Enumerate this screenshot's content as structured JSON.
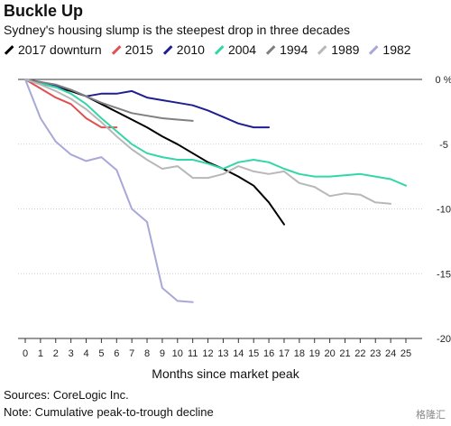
{
  "header": {
    "title": "Buckle Up",
    "subtitle": "Sydney's housing slump is the steepest drop in three decades"
  },
  "footer": {
    "source": "Sources: CoreLogic Inc.",
    "note": "Note: Cumulative peak-to-trough decline",
    "watermark": "格隆汇"
  },
  "chart_data": {
    "type": "line",
    "xlabel": "Months since market peak",
    "ylabel": "",
    "xlim": [
      0,
      25
    ],
    "ylim": [
      -20,
      0
    ],
    "x_ticks": [
      0,
      1,
      2,
      3,
      4,
      5,
      6,
      7,
      8,
      9,
      10,
      11,
      12,
      13,
      14,
      15,
      16,
      17,
      18,
      19,
      20,
      21,
      22,
      23,
      24,
      25
    ],
    "y_ticks": [
      0,
      -5,
      -10,
      -15,
      -20
    ],
    "y_tick_labels": [
      "0 %",
      "-5",
      "-10",
      "-15",
      "-20"
    ],
    "legend_position": "top",
    "grid": "horizontal",
    "series": [
      {
        "name": "2017 downturn",
        "color": "#000000",
        "x": [
          0,
          1,
          2,
          3,
          4,
          5,
          6,
          7,
          8,
          9,
          10,
          11,
          12,
          13,
          14,
          15,
          16,
          17
        ],
        "y": [
          0,
          -0.3,
          -0.6,
          -0.9,
          -1.3,
          -1.9,
          -2.5,
          -3.1,
          -3.7,
          -4.4,
          -5.0,
          -5.7,
          -6.4,
          -6.9,
          -7.5,
          -8.2,
          -9.5,
          -11.2
        ]
      },
      {
        "name": "2015",
        "color": "#e05050",
        "x": [
          0,
          1,
          2,
          3,
          4,
          5,
          6
        ],
        "y": [
          0,
          -0.7,
          -1.4,
          -1.9,
          -3.0,
          -3.7,
          -3.7
        ]
      },
      {
        "name": "2010",
        "color": "#1f1f8f",
        "x": [
          0,
          1,
          2,
          3,
          4,
          5,
          6,
          7,
          8,
          9,
          10,
          11,
          12,
          13,
          14,
          15,
          16
        ],
        "y": [
          0,
          -0.2,
          -0.5,
          -0.8,
          -1.3,
          -1.1,
          -1.1,
          -0.9,
          -1.4,
          -1.6,
          -1.8,
          -2.0,
          -2.4,
          -2.9,
          -3.4,
          -3.7,
          -3.7
        ]
      },
      {
        "name": "2004",
        "color": "#33d6a6",
        "x": [
          0,
          1,
          2,
          3,
          4,
          5,
          6,
          7,
          8,
          9,
          10,
          11,
          12,
          13,
          14,
          15,
          16,
          17,
          18,
          19,
          20,
          21,
          22,
          23,
          24,
          25
        ],
        "y": [
          0,
          -0.3,
          -0.6,
          -1.1,
          -1.9,
          -3.0,
          -4.0,
          -5.0,
          -5.7,
          -6.0,
          -6.2,
          -6.2,
          -6.5,
          -6.9,
          -6.4,
          -6.2,
          -6.4,
          -6.9,
          -7.3,
          -7.5,
          -7.5,
          -7.4,
          -7.3,
          -7.5,
          -7.7,
          -8.2
        ]
      },
      {
        "name": "1994",
        "color": "#808080",
        "x": [
          0,
          1,
          2,
          3,
          4,
          5,
          6,
          7,
          8,
          9,
          10,
          11
        ],
        "y": [
          0,
          -0.2,
          -0.4,
          -0.8,
          -1.3,
          -1.8,
          -2.2,
          -2.6,
          -2.8,
          -3.0,
          -3.1,
          -3.2
        ]
      },
      {
        "name": "1989",
        "color": "#b8b8b8",
        "x": [
          0,
          1,
          2,
          3,
          4,
          5,
          6,
          7,
          8,
          9,
          10,
          11,
          12,
          13,
          14,
          15,
          16,
          17,
          18,
          19,
          20,
          21,
          22,
          23,
          24
        ],
        "y": [
          0,
          -0.4,
          -0.9,
          -1.5,
          -2.3,
          -3.3,
          -4.4,
          -5.4,
          -6.2,
          -6.9,
          -6.7,
          -7.6,
          -7.6,
          -7.3,
          -6.7,
          -7.1,
          -7.3,
          -7.1,
          -8.0,
          -8.3,
          -9.0,
          -8.8,
          -8.9,
          -9.5,
          -9.6
        ]
      },
      {
        "name": "1982",
        "color": "#a8a8d8",
        "x": [
          0,
          1,
          2,
          3,
          4,
          5,
          6,
          7,
          8,
          9,
          10,
          11
        ],
        "y": [
          0,
          -3.0,
          -4.8,
          -5.8,
          -6.3,
          -6.0,
          -7.0,
          -10.0,
          -11.0,
          -16.1,
          -17.1,
          -17.2
        ]
      }
    ]
  }
}
